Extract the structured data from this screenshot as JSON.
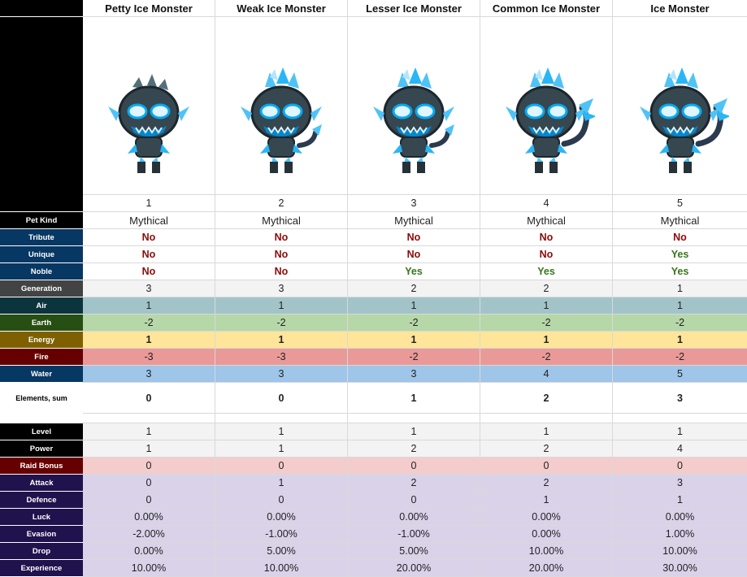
{
  "columns": [
    "Petty Ice Monster",
    "Weak Ice Monster",
    "Lesser Ice Monster",
    "Common Ice Monster",
    "Ice Monster"
  ],
  "numbers": [
    "1",
    "2",
    "3",
    "4",
    "5"
  ],
  "rows": {
    "pet_kind": {
      "label": "Pet Kind",
      "values": [
        "Mythical",
        "Mythical",
        "Mythical",
        "Mythical",
        "Mythical"
      ]
    },
    "tribute": {
      "label": "Tribute",
      "values": [
        "No",
        "No",
        "No",
        "No",
        "No"
      ]
    },
    "unique": {
      "label": "Unique",
      "values": [
        "No",
        "No",
        "No",
        "No",
        "Yes"
      ]
    },
    "noble": {
      "label": "Noble",
      "values": [
        "No",
        "No",
        "Yes",
        "Yes",
        "Yes"
      ]
    },
    "generation": {
      "label": "Generation",
      "values": [
        "3",
        "3",
        "2",
        "2",
        "1"
      ]
    },
    "air": {
      "label": "Air",
      "values": [
        "1",
        "1",
        "1",
        "1",
        "1"
      ]
    },
    "earth": {
      "label": "Earth",
      "values": [
        "-2",
        "-2",
        "-2",
        "-2",
        "-2"
      ]
    },
    "energy": {
      "label": "Energy",
      "values": [
        "1",
        "1",
        "1",
        "1",
        "1"
      ]
    },
    "fire": {
      "label": "Fire",
      "values": [
        "-3",
        "-3",
        "-2",
        "-2",
        "-2"
      ]
    },
    "water": {
      "label": "Water",
      "values": [
        "3",
        "3",
        "3",
        "4",
        "5"
      ]
    },
    "elements_sum": {
      "label": "Elements, sum",
      "values": [
        "0",
        "0",
        "1",
        "2",
        "3"
      ]
    },
    "level": {
      "label": "Level",
      "values": [
        "1",
        "1",
        "1",
        "1",
        "1"
      ]
    },
    "power": {
      "label": "Power",
      "values": [
        "1",
        "1",
        "2",
        "2",
        "4"
      ]
    },
    "raid_bonus": {
      "label": "Raid Bonus",
      "values": [
        "0",
        "0",
        "0",
        "0",
        "0"
      ]
    },
    "attack": {
      "label": "Attack",
      "values": [
        "0",
        "1",
        "2",
        "2",
        "3"
      ]
    },
    "defence": {
      "label": "Defence",
      "values": [
        "0",
        "0",
        "0",
        "1",
        "1"
      ]
    },
    "luck": {
      "label": "Luck",
      "values": [
        "0.00%",
        "0.00%",
        "0.00%",
        "0.00%",
        "0.00%"
      ]
    },
    "evasion": {
      "label": "Evasion",
      "values": [
        "-2.00%",
        "-1.00%",
        "-1.00%",
        "0.00%",
        "1.00%"
      ]
    },
    "drop": {
      "label": "Drop",
      "values": [
        "0.00%",
        "5.00%",
        "5.00%",
        "10.00%",
        "10.00%"
      ]
    },
    "experience": {
      "label": "Experience",
      "values": [
        "10.00%",
        "10.00%",
        "20.00%",
        "20.00%",
        "30.00%"
      ]
    }
  },
  "colors": {
    "label_black": "#000000",
    "label_navy": "#073763",
    "label_gray": "#434343",
    "label_darkteal": "#0c343d",
    "label_green": "#274e13",
    "label_olive": "#7f6000",
    "label_darkred": "#660000",
    "label_purple": "#20124d",
    "air_bg": "#a2c4c9",
    "earth_bg": "#b6d7a8",
    "energy_bg": "#ffe599",
    "fire_bg": "#ea9999",
    "water_bg": "#9fc5e8",
    "gen_bg": "#f3f3f3",
    "raid_bg": "#f4cccc",
    "stat_bg": "#d9d2e9"
  },
  "pet_icons": [
    "ice-monster-1-icon",
    "ice-monster-2-icon",
    "ice-monster-3-icon",
    "ice-monster-4-icon",
    "ice-monster-5-icon"
  ]
}
